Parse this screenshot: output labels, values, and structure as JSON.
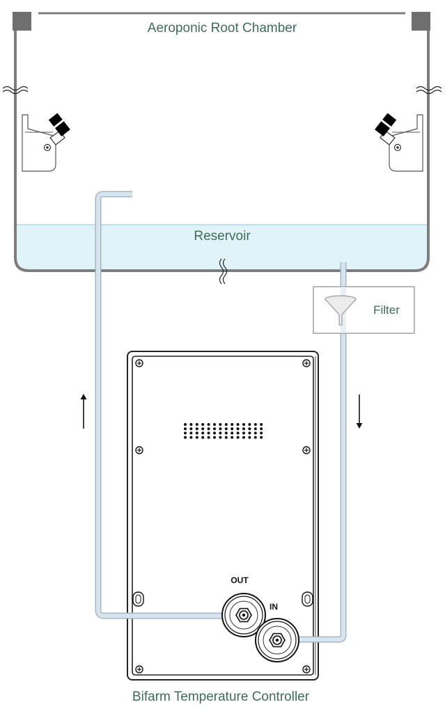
{
  "diagram": {
    "chamber_label": "Aeroponic Root Chamber",
    "reservoir_label": "Reservoir",
    "filter_label": "Filter",
    "port_out_label": "OUT",
    "port_in_label": "IN",
    "controller_label": "Bifarm Temperature Controller"
  },
  "colors": {
    "water": "#dff3f8",
    "water_line": "#9fd3e3",
    "tank_outline": "#808080",
    "tube_fill": "#d6e4ef",
    "tube_outline": "#a9b6c0",
    "label_green": "#3f6b57"
  },
  "icons": {
    "funnel": "funnel-icon",
    "nozzle": "nozzle-icon",
    "arrow_up": "arrow-up-icon",
    "arrow_down": "arrow-down-icon",
    "screw": "screw-icon",
    "fitting": "hose-fitting-icon"
  }
}
